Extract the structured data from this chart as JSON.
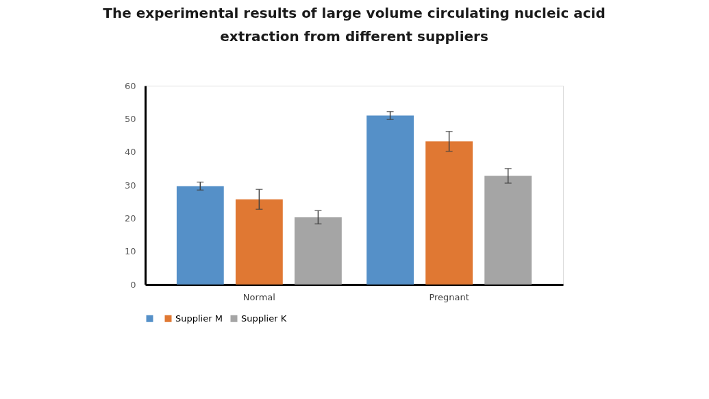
{
  "chart_data": {
    "type": "bar",
    "title": "The experimental results of large volume circulating nucleic acid extraction from different suppliers",
    "categories": [
      "Normal",
      "Pregnant"
    ],
    "series": [
      {
        "color": "#5590c8",
        "values": [
          29.7,
          51.0
        ],
        "errors": [
          1.2,
          1.2
        ]
      },
      {
        "name": "Supplier M",
        "color": "#e07833",
        "values": [
          25.7,
          43.2
        ],
        "errors": [
          3.0,
          3.0
        ]
      },
      {
        "name": "Supplier K",
        "color": "#a5a5a5",
        "values": [
          20.3,
          32.8
        ],
        "errors": [
          2.0,
          2.2
        ]
      }
    ],
    "ylim": [
      0,
      60
    ],
    "yticks": [
      0,
      10,
      20,
      30,
      40,
      50,
      60
    ],
    "grid": false,
    "legend": "bottom"
  }
}
